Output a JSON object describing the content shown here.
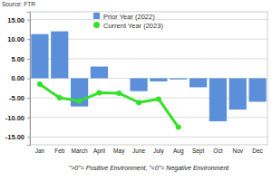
{
  "chart_data": {
    "type": "bar",
    "title": "Source: FTR",
    "categories": [
      "Jan",
      "Feb",
      "March",
      "April",
      "May",
      "June",
      "July",
      "Aug",
      "Sept",
      "Oct",
      "Nov",
      "Dec"
    ],
    "series": [
      {
        "name": "Prior Year (2022)",
        "type": "bar",
        "color": "#5b8fd9",
        "values": [
          11.3,
          12.0,
          -7.2,
          3.0,
          0,
          -3.3,
          -0.8,
          -0.3,
          -2.3,
          -11.0,
          -8.0,
          -6.0
        ]
      },
      {
        "name": "Current Year (2023)",
        "type": "line",
        "color": "#33e02a",
        "marker": "circle",
        "values": [
          -1.5,
          -5.0,
          -5.8,
          -3.7,
          -3.8,
          -6.2,
          -5.3,
          -12.5,
          null,
          null,
          null,
          null
        ]
      }
    ],
    "ylim": [
      -17,
      17
    ],
    "yticks": [
      {
        "value": -15,
        "label": "-15.00"
      },
      {
        "value": -10,
        "label": "-10.00"
      },
      {
        "value": -5,
        "label": "-5.00"
      },
      {
        "value": 0,
        "label": "0.00"
      },
      {
        "value": 5,
        "label": "5.00"
      },
      {
        "value": 10,
        "label": "10.00"
      },
      {
        "value": 15,
        "label": "15.00"
      }
    ],
    "grid": true,
    "legend": "top",
    "annotations": [
      "\">0\"= Positive Environment, \"<0\"= Negative Environment"
    ]
  }
}
